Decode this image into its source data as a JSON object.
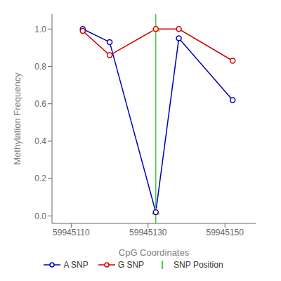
{
  "chart_data": {
    "type": "line",
    "x": [
      59945113,
      59945120,
      59945132,
      59945138,
      59945152
    ],
    "series": [
      {
        "name": "A SNP",
        "type": "line",
        "color": "#0000bb",
        "marker": "circle",
        "values": [
          1.0,
          0.93,
          0.02,
          0.95,
          0.62
        ]
      },
      {
        "name": "G SNP",
        "type": "line",
        "color": "#cc0000",
        "marker": "circle",
        "values": [
          0.99,
          0.86,
          1.0,
          1.0,
          0.83
        ]
      },
      {
        "name": "SNP Position",
        "type": "vline",
        "color": "#44cc44",
        "x": 59945132
      },
      {
        "type": "scatter",
        "marker": "triangle",
        "color": "#FFA500",
        "x": [
          59945132,
          59945132
        ],
        "values": [
          1.0,
          0.02
        ]
      }
    ],
    "xlabel": "CpG Coordinates",
    "ylabel": "Methylation Frequency",
    "xlim": [
      59945105,
      59945158
    ],
    "ylim": [
      -0.04,
      1.08
    ],
    "xticks": [
      59945110,
      59945130,
      59945150
    ],
    "yticks": [
      {
        "value": 0.0,
        "label": "0.0"
      },
      0.2,
      0.4,
      0.6,
      0.8,
      {
        "value": 1.0,
        "label": "1.0"
      }
    ],
    "grid": false
  }
}
